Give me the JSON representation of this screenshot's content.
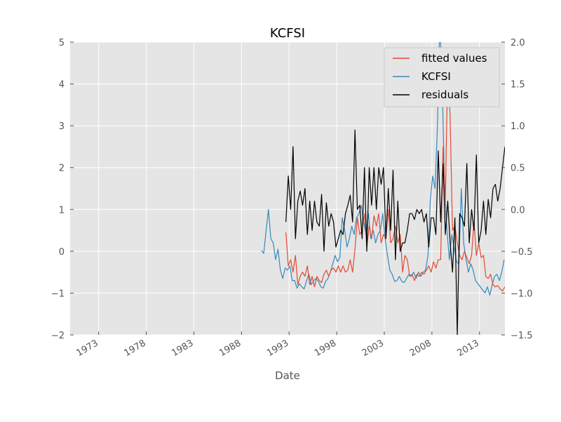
{
  "chart_data": {
    "type": "line",
    "title": "KCFSI",
    "xlabel": "Date",
    "ylabel_left": "",
    "ylabel_right": "",
    "x_axis": {
      "type": "date",
      "range": [
        "1970-01-01",
        "2015-09-01"
      ],
      "ticks": [
        {
          "date": "1973-01-01",
          "label": "1973"
        },
        {
          "date": "1978-01-01",
          "label": "1978"
        },
        {
          "date": "1983-01-01",
          "label": "1983"
        },
        {
          "date": "1988-01-01",
          "label": "1988"
        },
        {
          "date": "1993-01-01",
          "label": "1993"
        },
        {
          "date": "1998-01-01",
          "label": "1998"
        },
        {
          "date": "2003-01-01",
          "label": "2003"
        },
        {
          "date": "2008-01-01",
          "label": "2008"
        },
        {
          "date": "2013-01-01",
          "label": "2013"
        }
      ]
    },
    "y_left": {
      "range": [
        -2,
        5
      ],
      "ticks": [
        -2,
        -1,
        0,
        1,
        2,
        3,
        4,
        5
      ],
      "labels": [
        "−2",
        "−1",
        "0",
        "1",
        "2",
        "3",
        "4",
        "5"
      ]
    },
    "y_right": {
      "range": [
        -1.5,
        2.0
      ],
      "ticks": [
        -1.5,
        -1.0,
        -0.5,
        0.0,
        0.5,
        1.0,
        1.5,
        2.0
      ],
      "labels": [
        "−1.5",
        "−1.0",
        "−0.5",
        "0.0",
        "0.5",
        "1.0",
        "1.5",
        "2.0"
      ]
    },
    "grid": true,
    "legend": {
      "placement": "upper-right",
      "entries": [
        "fitted values",
        "KCFSI",
        "residuals"
      ]
    },
    "colors": {
      "fitted values": "#e24a33",
      "KCFSI": "#348abd",
      "residuals": "#000000",
      "plot_bg": "#e5e5e5",
      "grid": "#ffffff"
    },
    "series": [
      {
        "name": "KCFSI",
        "axis": "left",
        "color": "#348abd",
        "x": [
          "1990-02",
          "1990-05",
          "1990-08",
          "1990-11",
          "1991-02",
          "1991-05",
          "1991-08",
          "1991-11",
          "1992-02",
          "1992-05",
          "1992-08",
          "1992-11",
          "1993-02",
          "1993-05",
          "1993-08",
          "1993-11",
          "1994-02",
          "1994-05",
          "1994-08",
          "1994-11",
          "1995-02",
          "1995-05",
          "1995-08",
          "1995-11",
          "1996-02",
          "1996-05",
          "1996-08",
          "1996-11",
          "1997-02",
          "1997-05",
          "1997-08",
          "1997-11",
          "1998-02",
          "1998-05",
          "1998-08",
          "1998-11",
          "1999-02",
          "1999-05",
          "1999-08",
          "1999-11",
          "2000-02",
          "2000-05",
          "2000-08",
          "2000-11",
          "2001-02",
          "2001-05",
          "2001-08",
          "2001-11",
          "2002-02",
          "2002-05",
          "2002-08",
          "2002-11",
          "2003-02",
          "2003-05",
          "2003-08",
          "2003-11",
          "2004-02",
          "2004-05",
          "2004-08",
          "2004-11",
          "2005-02",
          "2005-05",
          "2005-08",
          "2005-11",
          "2006-02",
          "2006-05",
          "2006-08",
          "2006-11",
          "2007-02",
          "2007-05",
          "2007-08",
          "2007-11",
          "2008-02",
          "2008-05",
          "2008-08",
          "2008-11",
          "2009-02",
          "2009-05",
          "2009-08",
          "2009-11",
          "2010-02",
          "2010-05",
          "2010-08",
          "2010-11",
          "2011-02",
          "2011-05",
          "2011-08",
          "2011-11",
          "2012-02",
          "2012-05",
          "2012-08",
          "2013-08",
          "2013-11",
          "2014-02",
          "2014-05",
          "2014-08",
          "2014-11",
          "2015-02",
          "2015-05",
          "2015-08"
        ],
        "values": [
          0.02,
          -0.05,
          0.5,
          1.0,
          0.3,
          0.2,
          -0.2,
          0.05,
          -0.45,
          -0.65,
          -0.4,
          -0.45,
          -0.35,
          -0.7,
          -0.7,
          -0.88,
          -0.78,
          -0.85,
          -0.9,
          -0.7,
          -0.55,
          -0.8,
          -0.7,
          -0.65,
          -0.72,
          -0.85,
          -0.88,
          -0.72,
          -0.65,
          -0.5,
          -0.3,
          -0.1,
          -0.25,
          -0.15,
          0.8,
          0.5,
          0.1,
          0.3,
          0.6,
          0.4,
          0.8,
          0.9,
          1.1,
          0.7,
          0.4,
          0.9,
          0.3,
          0.5,
          0.2,
          0.4,
          0.5,
          0.9,
          0.3,
          -0.1,
          -0.45,
          -0.55,
          -0.72,
          -0.7,
          -0.6,
          -0.72,
          -0.75,
          -0.65,
          -0.55,
          -0.6,
          -0.5,
          -0.65,
          -0.5,
          -0.6,
          -0.5,
          -0.45,
          -0.1,
          1.2,
          1.8,
          1.5,
          3.0,
          5.5,
          4.0,
          1.5,
          0.5,
          -0.2,
          0.4,
          0.1,
          -0.25,
          -0.3,
          1.5,
          0.2,
          -0.2,
          -0.5,
          -0.3,
          -0.45,
          -0.7,
          -1.0,
          -0.85,
          -1.05,
          -0.8,
          -0.6,
          -0.55,
          -0.7,
          -0.5,
          -0.2
        ]
      },
      {
        "name": "fitted values",
        "axis": "left",
        "color": "#e24a33",
        "x": [
          "1992-09",
          "1992-12",
          "1993-03",
          "1993-06",
          "1993-09",
          "1993-12",
          "1994-03",
          "1994-06",
          "1994-09",
          "1994-12",
          "1995-03",
          "1995-06",
          "1995-09",
          "1995-12",
          "1996-03",
          "1996-06",
          "1996-09",
          "1996-12",
          "1997-03",
          "1997-06",
          "1997-09",
          "1997-12",
          "1998-03",
          "1998-06",
          "1998-09",
          "1998-12",
          "1999-03",
          "1999-06",
          "1999-09",
          "1999-12",
          "2000-03",
          "2000-06",
          "2000-09",
          "2000-12",
          "2001-03",
          "2001-06",
          "2001-09",
          "2001-12",
          "2002-03",
          "2002-06",
          "2002-09",
          "2002-12",
          "2003-03",
          "2003-06",
          "2003-09",
          "2003-12",
          "2004-03",
          "2004-06",
          "2004-09",
          "2004-12",
          "2005-03",
          "2005-06",
          "2005-09",
          "2005-12",
          "2006-03",
          "2006-06",
          "2006-09",
          "2006-12",
          "2007-03",
          "2007-06",
          "2007-09",
          "2007-12",
          "2008-03",
          "2008-06",
          "2008-09",
          "2008-12",
          "2009-03",
          "2009-06",
          "2009-09",
          "2009-12",
          "2010-03",
          "2010-06",
          "2010-09",
          "2010-12",
          "2011-03",
          "2011-06",
          "2011-09",
          "2011-12",
          "2012-03",
          "2012-06",
          "2012-09",
          "2012-12",
          "2013-03",
          "2013-06",
          "2013-09",
          "2013-12",
          "2014-03",
          "2014-06",
          "2014-09",
          "2014-12",
          "2015-03",
          "2015-06",
          "2015-09"
        ],
        "values": [
          0.45,
          -0.35,
          -0.2,
          -0.5,
          -0.1,
          -0.8,
          -0.6,
          -0.5,
          -0.6,
          -0.35,
          -0.8,
          -0.6,
          -0.85,
          -0.6,
          -0.7,
          -0.75,
          -0.55,
          -0.45,
          -0.6,
          -0.45,
          -0.4,
          -0.5,
          -0.35,
          -0.5,
          -0.35,
          -0.5,
          -0.45,
          -0.2,
          -0.5,
          0.05,
          0.8,
          0.4,
          0.5,
          0.9,
          0.1,
          0.6,
          0.3,
          0.85,
          0.6,
          0.9,
          0.2,
          0.4,
          0.3,
          1.0,
          0.2,
          0.3,
          0.6,
          0.2,
          0.4,
          -0.5,
          -0.1,
          -0.2,
          -0.6,
          -0.55,
          -0.7,
          -0.55,
          -0.6,
          -0.5,
          -0.55,
          -0.45,
          -0.35,
          -0.5,
          -0.25,
          -0.4,
          -0.2,
          -0.2,
          2.5,
          1.2,
          4.5,
          3.2,
          0.5,
          0.6,
          0.2,
          -0.1,
          -0.2,
          0.0,
          -0.15,
          -0.3,
          -0.1,
          0.7,
          -0.1,
          0.2,
          -0.15,
          -0.1,
          -0.6,
          -0.65,
          -0.55,
          -0.8,
          -0.85,
          -0.82,
          -0.9,
          -0.95,
          -0.85
        ]
      },
      {
        "name": "residuals",
        "axis": "right",
        "color": "#000000",
        "x": [
          "1992-09",
          "1992-12",
          "1993-03",
          "1993-06",
          "1993-09",
          "1993-12",
          "1994-03",
          "1994-06",
          "1994-09",
          "1994-12",
          "1995-03",
          "1995-06",
          "1995-09",
          "1995-12",
          "1996-03",
          "1996-06",
          "1996-09",
          "1996-12",
          "1997-03",
          "1997-06",
          "1997-09",
          "1997-12",
          "1998-03",
          "1998-06",
          "1998-09",
          "1998-12",
          "1999-03",
          "1999-06",
          "1999-09",
          "1999-12",
          "2000-03",
          "2000-06",
          "2000-09",
          "2000-12",
          "2001-03",
          "2001-06",
          "2001-09",
          "2001-12",
          "2002-03",
          "2002-06",
          "2002-09",
          "2002-12",
          "2003-03",
          "2003-06",
          "2003-09",
          "2003-12",
          "2004-03",
          "2004-06",
          "2004-09",
          "2004-12",
          "2005-03",
          "2005-06",
          "2005-09",
          "2005-12",
          "2006-03",
          "2006-06",
          "2006-09",
          "2006-12",
          "2007-03",
          "2007-06",
          "2007-09",
          "2007-12",
          "2008-03",
          "2008-06",
          "2008-09",
          "2008-12",
          "2009-03",
          "2009-06",
          "2009-09",
          "2009-12",
          "2010-03",
          "2010-06",
          "2010-09",
          "2010-12",
          "2011-03",
          "2011-06",
          "2011-09",
          "2011-12",
          "2012-03",
          "2012-06",
          "2012-09",
          "2012-12",
          "2013-03",
          "2013-06",
          "2013-09",
          "2013-12",
          "2014-03",
          "2014-06",
          "2014-09",
          "2014-12",
          "2015-03",
          "2015-06",
          "2015-09"
        ],
        "values": [
          -0.15,
          0.4,
          0.0,
          0.75,
          -0.35,
          0.1,
          0.22,
          0.05,
          0.25,
          -0.3,
          0.1,
          -0.25,
          0.1,
          -0.15,
          -0.2,
          0.18,
          -0.5,
          0.08,
          -0.2,
          -0.05,
          -0.15,
          -0.45,
          -0.35,
          -0.25,
          -0.3,
          -0.05,
          0.05,
          0.17,
          -0.15,
          0.95,
          0.0,
          0.05,
          -0.35,
          0.5,
          -0.5,
          0.5,
          0.05,
          0.5,
          0.0,
          0.5,
          0.3,
          0.5,
          -0.35,
          0.25,
          -0.25,
          0.47,
          -0.6,
          0.1,
          -0.5,
          -0.4,
          -0.4,
          -0.25,
          -0.05,
          -0.05,
          -0.12,
          0.0,
          -0.05,
          0.0,
          -0.15,
          -0.05,
          -0.45,
          -0.1,
          -0.1,
          -0.3,
          0.7,
          -0.15,
          0.55,
          -0.3,
          0.1,
          -0.4,
          -0.75,
          -0.1,
          -1.5,
          -0.05,
          -0.1,
          -0.2,
          0.55,
          -0.4,
          0.0,
          -0.25,
          0.65,
          -0.4,
          -0.25,
          0.1,
          -0.3,
          0.12,
          -0.1,
          0.25,
          0.3,
          0.1,
          0.25,
          0.5,
          0.75
        ]
      }
    ]
  }
}
